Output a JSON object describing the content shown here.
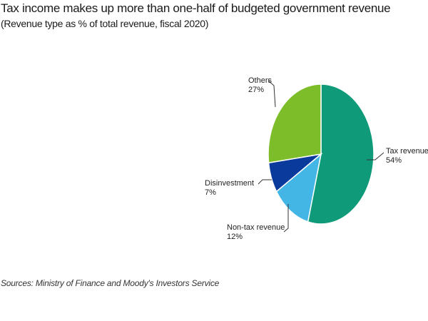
{
  "header": {
    "title": "Tax income makes up more than one-half of budgeted government revenue",
    "subtitle": "(Revenue type as % of total revenue, fiscal 2020)"
  },
  "footer": {
    "source": "Sources: Ministry of Finance and Moody's Investors Service"
  },
  "chart_data": {
    "type": "pie",
    "title": "Tax income makes up more than one-half of budgeted government revenue",
    "subtitle": "(Revenue type as % of total revenue, fiscal 2020)",
    "unit": "% of total revenue",
    "slices": [
      {
        "name": "Tax revenue",
        "value": 54,
        "label": "54%",
        "color": "#0f9b7a"
      },
      {
        "name": "Non-tax revenue",
        "value": 12,
        "label": "12%",
        "color": "#43b6e6"
      },
      {
        "name": "Disinvestment",
        "value": 7,
        "label": "7%",
        "color": "#0a3a9c"
      },
      {
        "name": "Others",
        "value": 27,
        "label": "27%",
        "color": "#7dbd2a"
      }
    ]
  }
}
